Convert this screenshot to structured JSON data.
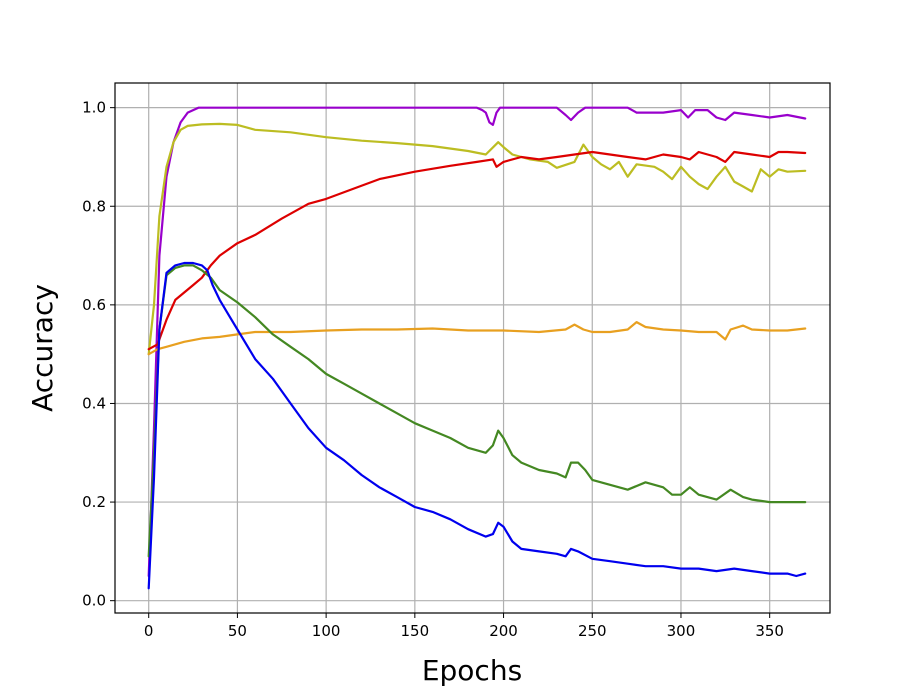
{
  "chart_data": {
    "type": "line",
    "title": "",
    "xlabel": "Epochs",
    "ylabel": "Accuracy",
    "xlim": [
      -19,
      384
    ],
    "ylim": [
      -0.025,
      1.05
    ],
    "xticks": [
      0,
      50,
      100,
      150,
      200,
      250,
      300,
      350
    ],
    "yticks": [
      0.0,
      0.2,
      0.4,
      0.6,
      0.8,
      1.0
    ],
    "xtick_labels": [
      "0",
      "50",
      "100",
      "150",
      "200",
      "250",
      "300",
      "350"
    ],
    "ytick_labels": [
      "0.0",
      "0.2",
      "0.4",
      "0.6",
      "0.8",
      "1.0"
    ],
    "grid": true,
    "legend": false,
    "series": [
      {
        "color": "#9900cc",
        "points": [
          [
            0,
            0.05
          ],
          [
            3,
            0.35
          ],
          [
            6,
            0.7
          ],
          [
            10,
            0.86
          ],
          [
            14,
            0.93
          ],
          [
            18,
            0.97
          ],
          [
            22,
            0.99
          ],
          [
            28,
            1.0
          ],
          [
            50,
            1.0
          ],
          [
            100,
            1.0
          ],
          [
            150,
            1.0
          ],
          [
            185,
            1.0
          ],
          [
            188,
            0.995
          ],
          [
            190,
            0.99
          ],
          [
            192,
            0.97
          ],
          [
            194,
            0.965
          ],
          [
            196,
            0.99
          ],
          [
            198,
            1.0
          ],
          [
            230,
            1.0
          ],
          [
            235,
            0.985
          ],
          [
            238,
            0.975
          ],
          [
            242,
            0.99
          ],
          [
            246,
            1.0
          ],
          [
            270,
            1.0
          ],
          [
            275,
            0.99
          ],
          [
            290,
            0.99
          ],
          [
            300,
            0.995
          ],
          [
            304,
            0.98
          ],
          [
            308,
            0.995
          ],
          [
            315,
            0.995
          ],
          [
            320,
            0.98
          ],
          [
            325,
            0.975
          ],
          [
            330,
            0.99
          ],
          [
            340,
            0.985
          ],
          [
            350,
            0.98
          ],
          [
            360,
            0.985
          ],
          [
            370,
            0.978
          ]
        ]
      },
      {
        "color": "#bcbd22",
        "points": [
          [
            0,
            0.5
          ],
          [
            3,
            0.6
          ],
          [
            6,
            0.78
          ],
          [
            10,
            0.88
          ],
          [
            14,
            0.93
          ],
          [
            18,
            0.955
          ],
          [
            22,
            0.963
          ],
          [
            30,
            0.966
          ],
          [
            40,
            0.967
          ],
          [
            50,
            0.965
          ],
          [
            60,
            0.955
          ],
          [
            80,
            0.95
          ],
          [
            100,
            0.94
          ],
          [
            120,
            0.933
          ],
          [
            140,
            0.928
          ],
          [
            160,
            0.922
          ],
          [
            180,
            0.912
          ],
          [
            190,
            0.905
          ],
          [
            197,
            0.93
          ],
          [
            200,
            0.92
          ],
          [
            205,
            0.905
          ],
          [
            215,
            0.895
          ],
          [
            225,
            0.89
          ],
          [
            230,
            0.878
          ],
          [
            240,
            0.89
          ],
          [
            245,
            0.925
          ],
          [
            250,
            0.9
          ],
          [
            255,
            0.885
          ],
          [
            260,
            0.875
          ],
          [
            265,
            0.89
          ],
          [
            270,
            0.86
          ],
          [
            275,
            0.885
          ],
          [
            285,
            0.88
          ],
          [
            290,
            0.87
          ],
          [
            295,
            0.855
          ],
          [
            300,
            0.88
          ],
          [
            305,
            0.86
          ],
          [
            310,
            0.845
          ],
          [
            315,
            0.835
          ],
          [
            320,
            0.86
          ],
          [
            325,
            0.88
          ],
          [
            330,
            0.85
          ],
          [
            335,
            0.84
          ],
          [
            340,
            0.83
          ],
          [
            345,
            0.875
          ],
          [
            350,
            0.86
          ],
          [
            355,
            0.875
          ],
          [
            360,
            0.87
          ],
          [
            370,
            0.872
          ]
        ]
      },
      {
        "color": "#dd0000",
        "points": [
          [
            0,
            0.51
          ],
          [
            5,
            0.52
          ],
          [
            10,
            0.57
          ],
          [
            15,
            0.61
          ],
          [
            20,
            0.625
          ],
          [
            25,
            0.64
          ],
          [
            30,
            0.655
          ],
          [
            35,
            0.68
          ],
          [
            40,
            0.7
          ],
          [
            50,
            0.725
          ],
          [
            60,
            0.742
          ],
          [
            75,
            0.775
          ],
          [
            90,
            0.805
          ],
          [
            100,
            0.815
          ],
          [
            115,
            0.835
          ],
          [
            130,
            0.855
          ],
          [
            150,
            0.87
          ],
          [
            170,
            0.882
          ],
          [
            185,
            0.89
          ],
          [
            194,
            0.895
          ],
          [
            196,
            0.88
          ],
          [
            200,
            0.89
          ],
          [
            210,
            0.9
          ],
          [
            220,
            0.895
          ],
          [
            230,
            0.9
          ],
          [
            240,
            0.905
          ],
          [
            250,
            0.91
          ],
          [
            260,
            0.905
          ],
          [
            270,
            0.9
          ],
          [
            280,
            0.895
          ],
          [
            290,
            0.905
          ],
          [
            300,
            0.9
          ],
          [
            305,
            0.895
          ],
          [
            310,
            0.91
          ],
          [
            320,
            0.9
          ],
          [
            325,
            0.89
          ],
          [
            330,
            0.91
          ],
          [
            340,
            0.905
          ],
          [
            350,
            0.9
          ],
          [
            355,
            0.91
          ],
          [
            360,
            0.91
          ],
          [
            370,
            0.908
          ]
        ]
      },
      {
        "color": "#e8a020",
        "points": [
          [
            0,
            0.5
          ],
          [
            5,
            0.51
          ],
          [
            10,
            0.515
          ],
          [
            20,
            0.525
          ],
          [
            30,
            0.532
          ],
          [
            40,
            0.535
          ],
          [
            50,
            0.54
          ],
          [
            60,
            0.545
          ],
          [
            80,
            0.545
          ],
          [
            100,
            0.548
          ],
          [
            120,
            0.55
          ],
          [
            140,
            0.55
          ],
          [
            160,
            0.552
          ],
          [
            180,
            0.548
          ],
          [
            200,
            0.548
          ],
          [
            220,
            0.545
          ],
          [
            235,
            0.55
          ],
          [
            240,
            0.56
          ],
          [
            245,
            0.55
          ],
          [
            250,
            0.545
          ],
          [
            260,
            0.545
          ],
          [
            270,
            0.55
          ],
          [
            275,
            0.565
          ],
          [
            280,
            0.555
          ],
          [
            290,
            0.55
          ],
          [
            300,
            0.548
          ],
          [
            310,
            0.545
          ],
          [
            320,
            0.545
          ],
          [
            325,
            0.53
          ],
          [
            328,
            0.55
          ],
          [
            335,
            0.558
          ],
          [
            340,
            0.55
          ],
          [
            350,
            0.548
          ],
          [
            360,
            0.548
          ],
          [
            370,
            0.552
          ]
        ]
      },
      {
        "color": "#448822",
        "points": [
          [
            0,
            0.09
          ],
          [
            3,
            0.3
          ],
          [
            6,
            0.55
          ],
          [
            10,
            0.66
          ],
          [
            15,
            0.675
          ],
          [
            20,
            0.68
          ],
          [
            25,
            0.68
          ],
          [
            30,
            0.67
          ],
          [
            35,
            0.655
          ],
          [
            40,
            0.63
          ],
          [
            50,
            0.605
          ],
          [
            60,
            0.575
          ],
          [
            70,
            0.54
          ],
          [
            80,
            0.515
          ],
          [
            90,
            0.49
          ],
          [
            100,
            0.46
          ],
          [
            110,
            0.44
          ],
          [
            120,
            0.42
          ],
          [
            130,
            0.4
          ],
          [
            140,
            0.38
          ],
          [
            150,
            0.36
          ],
          [
            160,
            0.345
          ],
          [
            170,
            0.33
          ],
          [
            180,
            0.31
          ],
          [
            190,
            0.3
          ],
          [
            194,
            0.315
          ],
          [
            197,
            0.345
          ],
          [
            200,
            0.33
          ],
          [
            205,
            0.295
          ],
          [
            210,
            0.28
          ],
          [
            220,
            0.265
          ],
          [
            230,
            0.258
          ],
          [
            235,
            0.25
          ],
          [
            238,
            0.28
          ],
          [
            242,
            0.28
          ],
          [
            246,
            0.265
          ],
          [
            250,
            0.245
          ],
          [
            260,
            0.235
          ],
          [
            270,
            0.225
          ],
          [
            280,
            0.24
          ],
          [
            290,
            0.23
          ],
          [
            295,
            0.215
          ],
          [
            300,
            0.215
          ],
          [
            305,
            0.23
          ],
          [
            310,
            0.215
          ],
          [
            320,
            0.205
          ],
          [
            328,
            0.225
          ],
          [
            335,
            0.21
          ],
          [
            340,
            0.205
          ],
          [
            350,
            0.2
          ],
          [
            360,
            0.2
          ],
          [
            370,
            0.2
          ]
        ]
      },
      {
        "color": "#0000ee",
        "points": [
          [
            0,
            0.025
          ],
          [
            3,
            0.25
          ],
          [
            6,
            0.55
          ],
          [
            10,
            0.665
          ],
          [
            15,
            0.68
          ],
          [
            20,
            0.685
          ],
          [
            25,
            0.685
          ],
          [
            30,
            0.68
          ],
          [
            33,
            0.67
          ],
          [
            36,
            0.64
          ],
          [
            40,
            0.61
          ],
          [
            45,
            0.58
          ],
          [
            50,
            0.55
          ],
          [
            60,
            0.49
          ],
          [
            70,
            0.45
          ],
          [
            80,
            0.4
          ],
          [
            90,
            0.35
          ],
          [
            100,
            0.31
          ],
          [
            110,
            0.285
          ],
          [
            120,
            0.255
          ],
          [
            130,
            0.23
          ],
          [
            140,
            0.21
          ],
          [
            150,
            0.19
          ],
          [
            160,
            0.18
          ],
          [
            170,
            0.165
          ],
          [
            180,
            0.145
          ],
          [
            190,
            0.13
          ],
          [
            194,
            0.135
          ],
          [
            197,
            0.158
          ],
          [
            200,
            0.15
          ],
          [
            205,
            0.12
          ],
          [
            210,
            0.105
          ],
          [
            220,
            0.1
          ],
          [
            230,
            0.095
          ],
          [
            235,
            0.09
          ],
          [
            238,
            0.105
          ],
          [
            242,
            0.1
          ],
          [
            250,
            0.085
          ],
          [
            260,
            0.08
          ],
          [
            270,
            0.075
          ],
          [
            280,
            0.07
          ],
          [
            290,
            0.07
          ],
          [
            300,
            0.065
          ],
          [
            310,
            0.065
          ],
          [
            320,
            0.06
          ],
          [
            330,
            0.065
          ],
          [
            340,
            0.06
          ],
          [
            350,
            0.055
          ],
          [
            360,
            0.055
          ],
          [
            365,
            0.05
          ],
          [
            370,
            0.055
          ]
        ]
      }
    ]
  }
}
